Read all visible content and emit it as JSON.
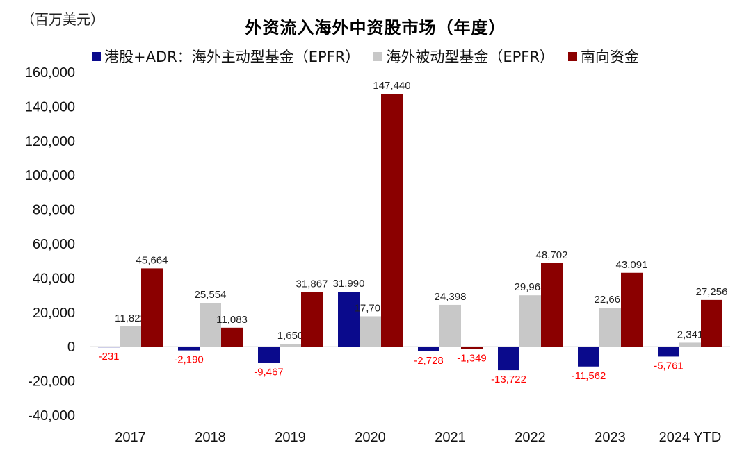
{
  "chart_data": {
    "type": "bar",
    "title": "外资流入海外中资股市场（年度）",
    "unit_label": "（百万美元）",
    "categories": [
      "2017",
      "2018",
      "2019",
      "2020",
      "2021",
      "2022",
      "2023",
      "2024 YTD"
    ],
    "series": [
      {
        "name": "港股+ADR：海外主动型基金（EPFR）",
        "color": "#0a0a8c",
        "values": [
          -231,
          -2190,
          -9467,
          31990,
          -2728,
          -13722,
          -11562,
          -5761
        ],
        "labels": [
          "-231",
          "-2,190",
          "-9,467",
          "31,990",
          "-2,728",
          "-13,722",
          "-11,562",
          "-5,761"
        ]
      },
      {
        "name": "海外被动型基金（EPFR）",
        "color": "#c8c8c8",
        "values": [
          11822,
          25554,
          1650,
          17705,
          24398,
          29963,
          22663,
          2341
        ],
        "labels": [
          "11,822",
          "25,554",
          "1,650",
          "17,705",
          "24,398",
          "29,963",
          "22,663",
          "2,341"
        ]
      },
      {
        "name": "南向资金",
        "color": "#8b0000",
        "values": [
          45664,
          11083,
          31867,
          147440,
          -1349,
          48702,
          43091,
          27256
        ],
        "labels": [
          "45,664",
          "11,083",
          "31,867",
          "147,440",
          "-1,349",
          "48,702",
          "43,091",
          "27,256"
        ]
      }
    ],
    "ylim": [
      -40000,
      160000
    ],
    "yticks": [
      160000,
      140000,
      120000,
      100000,
      80000,
      60000,
      40000,
      20000,
      0,
      -20000,
      -40000
    ],
    "ytick_labels": [
      "160,000",
      "140,000",
      "120,000",
      "100,000",
      "80,000",
      "60,000",
      "40,000",
      "20,000",
      "0",
      "-20,000",
      "-40,000"
    ],
    "negative_label_color": "#ff0000",
    "positive_label_color": "#222222",
    "grid": false,
    "legend_position": "top"
  }
}
